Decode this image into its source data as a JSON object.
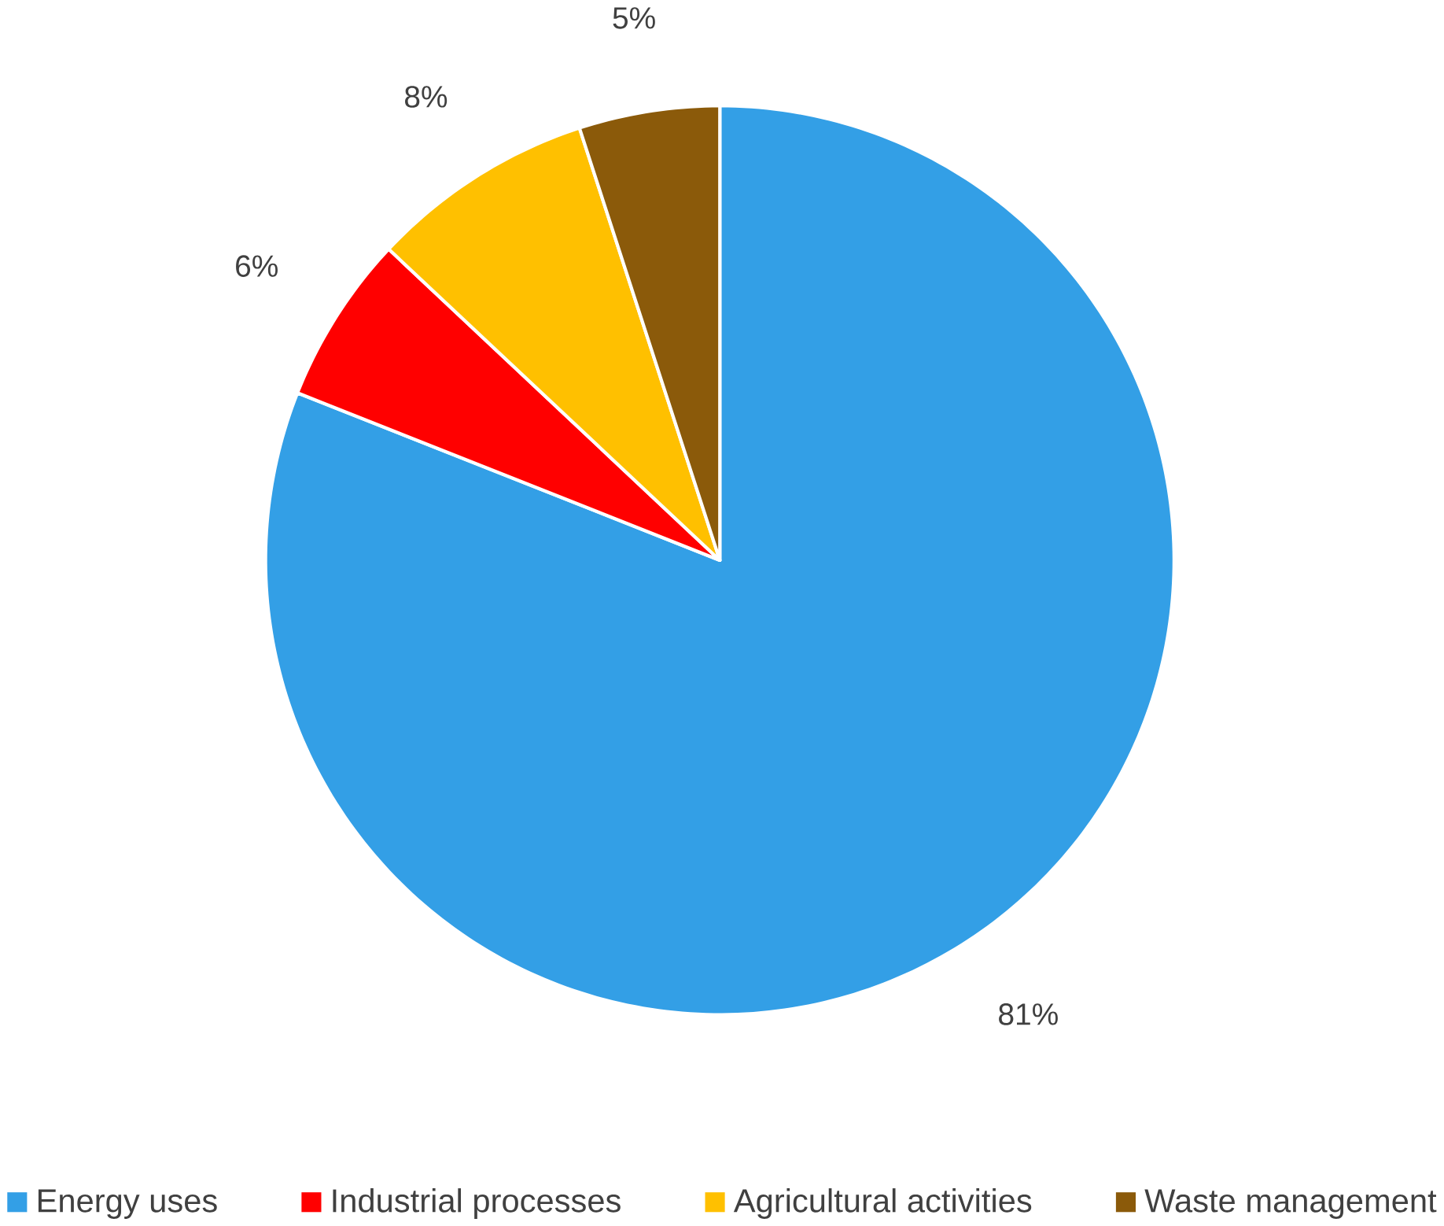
{
  "chart_data": {
    "type": "pie",
    "categories": [
      "Energy uses",
      "Industrial processes",
      "Agricultural activities",
      "Waste management"
    ],
    "values": [
      81,
      6,
      8,
      5
    ],
    "value_labels": [
      "81%",
      "6%",
      "8%",
      "5%"
    ],
    "colors": [
      "#339fe6",
      "#ff0000",
      "#ffc000",
      "#8b5a0a"
    ],
    "legend": "bottom"
  }
}
